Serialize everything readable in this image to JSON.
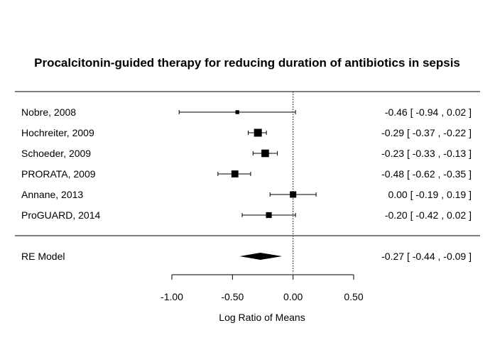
{
  "chart_data": {
    "type": "forest",
    "title": "Procalcitonin-guided therapy for reducing duration of antibiotics in sepsis",
    "xlabel": "Log Ratio of Means",
    "xlim": [
      -1.0,
      0.5
    ],
    "x_ticks": [
      -1.0,
      -0.5,
      0.0,
      0.5
    ],
    "x_tick_labels": [
      "-1.00",
      "-0.50",
      "0.00",
      "0.50"
    ],
    "reference_line": 0.0,
    "studies": [
      {
        "label": "Nobre, 2008",
        "estimate": -0.46,
        "lower": -0.94,
        "upper": 0.02,
        "weight": 0.3,
        "ci_text": "-0.46 [ -0.94 ,  0.02 ]"
      },
      {
        "label": "Hochreiter, 2009",
        "estimate": -0.29,
        "lower": -0.37,
        "upper": -0.22,
        "weight": 1.0,
        "ci_text": "-0.29 [ -0.37 , -0.22 ]"
      },
      {
        "label": "Schoeder, 2009",
        "estimate": -0.23,
        "lower": -0.33,
        "upper": -0.13,
        "weight": 0.95,
        "ci_text": "-0.23 [ -0.33 , -0.13 ]"
      },
      {
        "label": "PRORATA, 2009",
        "estimate": -0.48,
        "lower": -0.62,
        "upper": -0.35,
        "weight": 0.85,
        "ci_text": "-0.48 [ -0.62 , -0.35 ]"
      },
      {
        "label": "Annane, 2013",
        "estimate": 0.0,
        "lower": -0.19,
        "upper": 0.19,
        "weight": 0.75,
        "ci_text": " 0.00 [ -0.19 ,  0.19 ]"
      },
      {
        "label": "ProGUARD, 2014",
        "estimate": -0.2,
        "lower": -0.42,
        "upper": 0.02,
        "weight": 0.65,
        "ci_text": "-0.20 [ -0.42 ,  0.02 ]"
      }
    ],
    "summary": {
      "label": "RE Model",
      "estimate": -0.27,
      "lower": -0.44,
      "upper": -0.09,
      "ci_text": "-0.27 [ -0.44 , -0.09 ]"
    }
  }
}
